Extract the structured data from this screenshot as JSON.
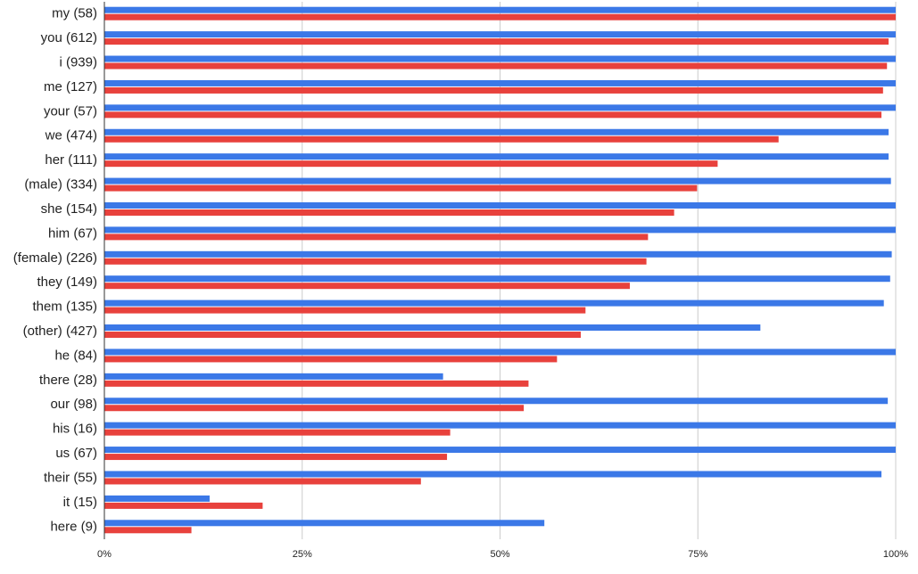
{
  "chart_data": {
    "type": "bar",
    "orientation": "horizontal",
    "categories": [
      "my (58)",
      "you (612)",
      "i (939)",
      "me (127)",
      "your (57)",
      "we (474)",
      "her (111)",
      "(male) (334)",
      "she (154)",
      "him (67)",
      "(female) (226)",
      "they (149)",
      "them (135)",
      "(other) (427)",
      "he (84)",
      "there (28)",
      "our (98)",
      "his (16)",
      "us (67)",
      "their (55)",
      "it (15)",
      "here (9)"
    ],
    "series": [
      {
        "color": "#3b78e7",
        "values": [
          100,
          100,
          100,
          100,
          100,
          99.1,
          99.1,
          99.4,
          100,
          100,
          99.5,
          99.3,
          98.5,
          82.9,
          100,
          42.8,
          99.0,
          100,
          100,
          98.2,
          13.3,
          55.6
        ]
      },
      {
        "color": "#e8413c",
        "values": [
          100,
          99.1,
          98.9,
          98.4,
          98.2,
          85.2,
          77.5,
          74.9,
          72.0,
          68.7,
          68.5,
          66.4,
          60.8,
          60.2,
          57.2,
          53.6,
          53.0,
          43.7,
          43.3,
          40.0,
          20.0,
          11.0
        ]
      }
    ],
    "xlim": [
      0,
      100
    ],
    "xticks": [
      {
        "value": 0,
        "label": "0%"
      },
      {
        "value": 25,
        "label": "25%"
      },
      {
        "value": 50,
        "label": "50%"
      },
      {
        "value": 75,
        "label": "75%"
      },
      {
        "value": 100,
        "label": "100%"
      }
    ],
    "grid": true
  }
}
